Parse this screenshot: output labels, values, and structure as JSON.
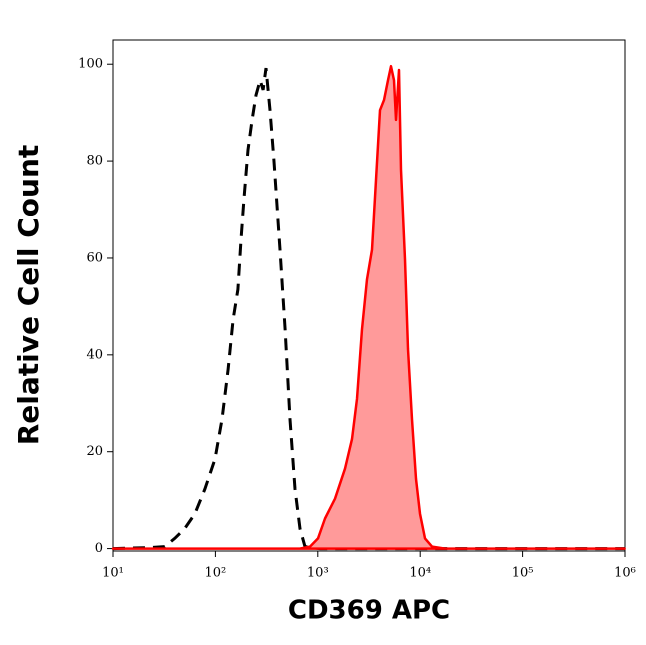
{
  "chart_data": {
    "type": "histogram-overlay",
    "x_label": "CD369 APC",
    "y_label": "Relative Cell Count",
    "x_scale": "log",
    "xlim": [
      10,
      1000000
    ],
    "xticks": [
      {
        "value": 10,
        "label": "10¹"
      },
      {
        "value": 100,
        "label": "10²"
      },
      {
        "value": 1000,
        "label": "10³"
      },
      {
        "value": 10000,
        "label": "10⁴"
      },
      {
        "value": 100000,
        "label": "10⁵"
      },
      {
        "value": 1000000,
        "label": "10⁶"
      }
    ],
    "ylim": [
      -0.5,
      105
    ],
    "yticks": [
      0,
      20,
      40,
      60,
      80,
      100
    ],
    "series": [
      {
        "style": "dashed",
        "color": "#000000",
        "x": [
          10,
          23,
          32,
          40,
          50,
          63,
          79,
          99,
          116,
          133,
          149,
          166,
          178,
          190,
          208,
          228,
          249,
          273,
          292,
          312,
          341,
          373,
          427,
          479,
          535,
          599,
          670,
          750,
          1050,
          990000
        ],
        "values": [
          0,
          0.2,
          0.4,
          2.1,
          4.1,
          7.2,
          12.3,
          18.5,
          26.7,
          37,
          47.3,
          53.5,
          63.8,
          72,
          82.3,
          88.5,
          93.6,
          96.7,
          94.7,
          99.2,
          90.5,
          80.2,
          61.7,
          45.3,
          26.7,
          12.3,
          4.1,
          0.4,
          0,
          0
        ]
      },
      {
        "style": "filled",
        "color": "#ff0000",
        "fill": "#ff9a9a",
        "x": [
          10,
          670,
          840,
          1005,
          1175,
          1472,
          1844,
          2158,
          2416,
          2703,
          3020,
          3382,
          3700,
          4047,
          4428,
          4849,
          5188,
          5546,
          5807,
          6209,
          6501,
          7112,
          7603,
          8318,
          9100,
          9955,
          11140,
          13030,
          17460,
          990000
        ],
        "values": [
          0,
          0,
          0.4,
          2.1,
          6.2,
          10.3,
          16.5,
          22.6,
          30.9,
          45.3,
          55.6,
          61.7,
          76.1,
          90.5,
          92.6,
          96.7,
          99.6,
          96.7,
          88.5,
          98.8,
          78.2,
          59.7,
          41.2,
          26.7,
          14.4,
          7.2,
          2.1,
          0.4,
          0,
          0
        ]
      }
    ]
  }
}
